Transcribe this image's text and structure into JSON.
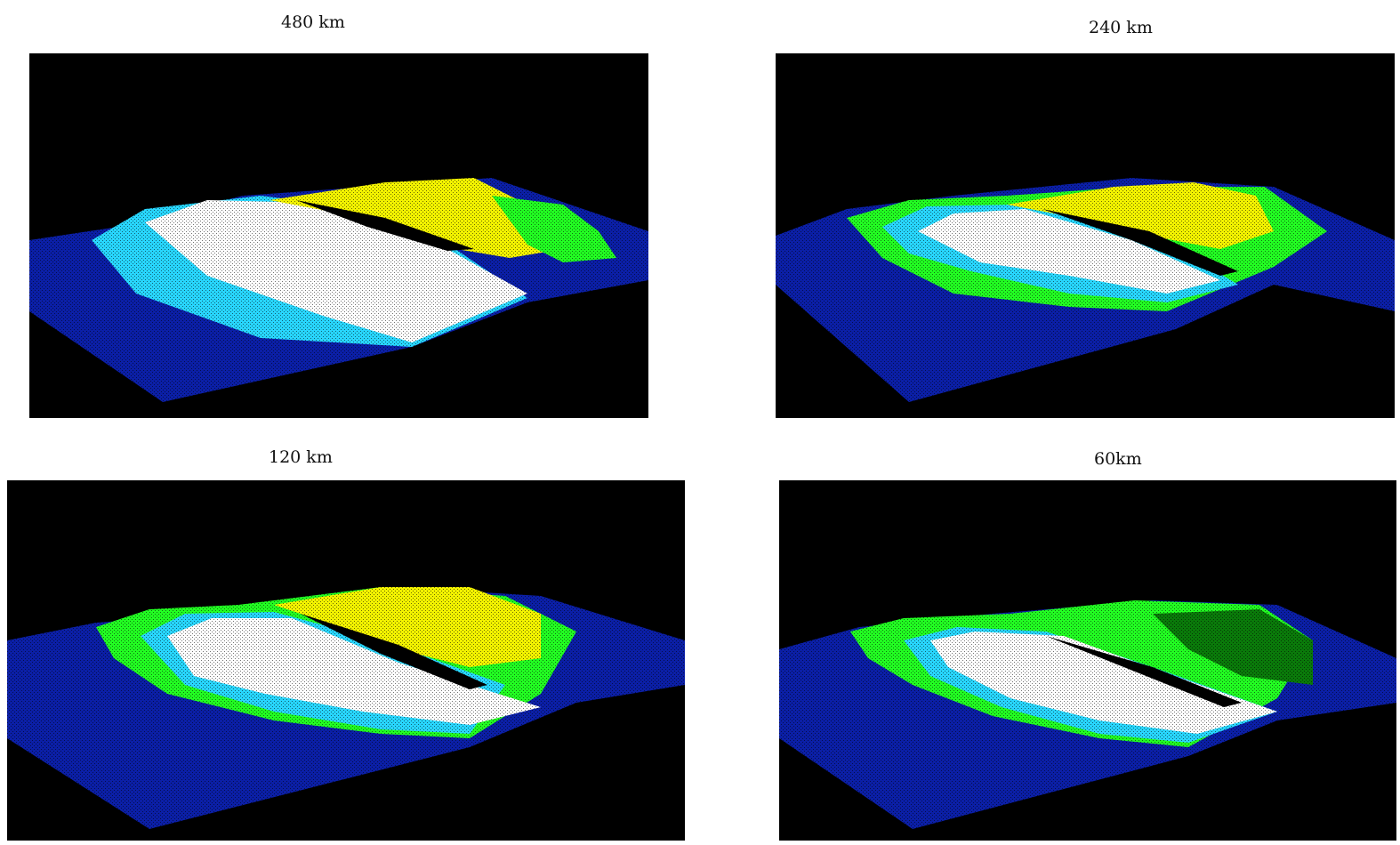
{
  "panels": [
    {
      "label": "480 km"
    },
    {
      "label": "240 km"
    },
    {
      "label": "120 km"
    },
    {
      "label": "60km"
    }
  ],
  "colors": {
    "background": "#000000",
    "low": "#0a1ea0",
    "mid_low": "#00e0ff",
    "mid": "#20ff20",
    "high": "#ffff00",
    "peak": "#ffffff"
  }
}
